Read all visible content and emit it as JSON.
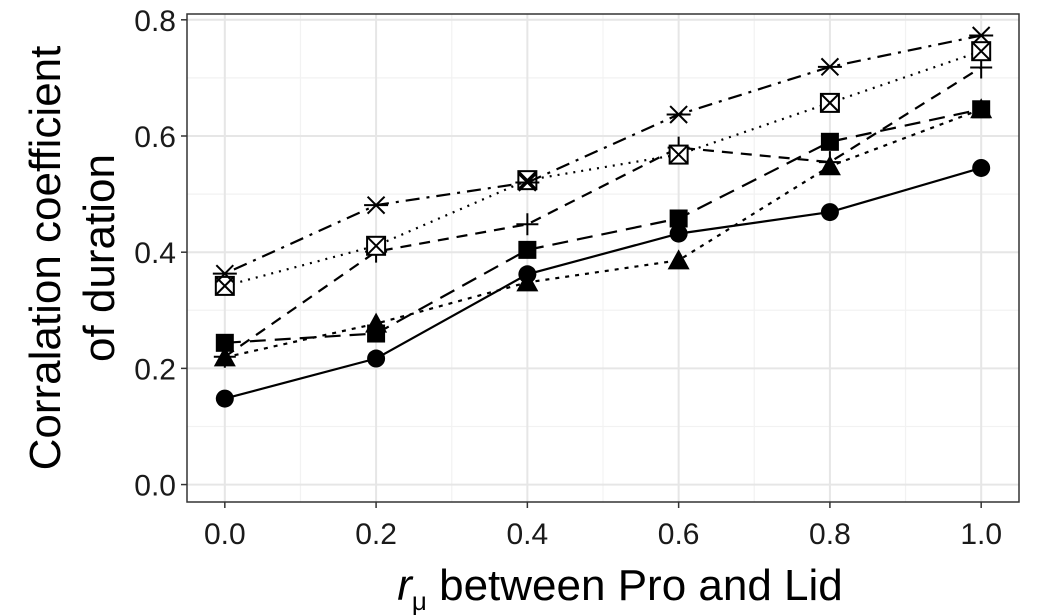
{
  "chart_data": {
    "type": "line",
    "xlabel_var": "r",
    "xlabel_sub": "μ",
    "xlabel_rest": " between Pro and Lid",
    "ylabel_line1": "Corralation coefficient",
    "ylabel_line2": "of duration",
    "xlim": [
      -0.05,
      1.05
    ],
    "ylim": [
      -0.03,
      0.81
    ],
    "x_ticks": [
      0.0,
      0.2,
      0.4,
      0.6,
      0.8,
      1.0
    ],
    "x_tick_labels": [
      "0.0",
      "0.2",
      "0.4",
      "0.6",
      "0.8",
      "1.0"
    ],
    "y_ticks": [
      0.0,
      0.2,
      0.4,
      0.6,
      0.8
    ],
    "y_tick_labels": [
      "0.0",
      "0.2",
      "0.4",
      "0.6",
      "0.8"
    ],
    "grid": true,
    "legend": "none",
    "x": [
      0.0,
      0.2,
      0.4,
      0.6,
      0.8,
      1.0
    ],
    "series": [
      {
        "marker": "circle",
        "line": "solid",
        "values": [
          0.148,
          0.217,
          0.362,
          0.432,
          0.469,
          0.545
        ]
      },
      {
        "marker": "square",
        "line": "longdash",
        "values": [
          0.244,
          0.26,
          0.404,
          0.458,
          0.59,
          0.646
        ]
      },
      {
        "marker": "triangle",
        "line": "dotted",
        "values": [
          0.219,
          0.277,
          0.348,
          0.386,
          0.548,
          0.646
        ]
      },
      {
        "marker": "plus",
        "line": "dashed",
        "values": [
          0.22,
          0.401,
          0.448,
          0.58,
          0.555,
          0.718
        ]
      },
      {
        "marker": "boxcross",
        "line": "dotted-fine",
        "values": [
          0.342,
          0.411,
          0.524,
          0.568,
          0.657,
          0.746
        ]
      },
      {
        "marker": "asterisk",
        "line": "dotdash",
        "values": [
          0.363,
          0.481,
          0.52,
          0.637,
          0.719,
          0.773
        ]
      }
    ],
    "colors": {
      "line": "#000000",
      "grid_major": "#e6e6e6",
      "grid_minor": "#f2f2f2",
      "panel_border": "#333333"
    }
  }
}
